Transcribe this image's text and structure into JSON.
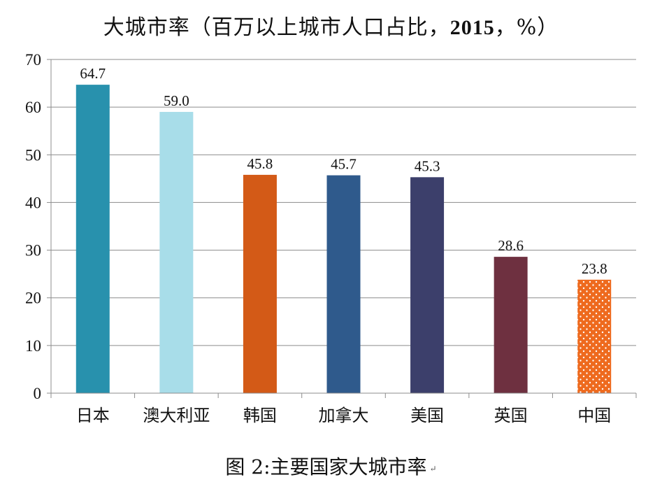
{
  "title_prefix": "大城市率（百万以上城市人口占比，",
  "title_year": "2015",
  "title_suffix": "，%）",
  "caption": "图 2:主要国家大城市率",
  "caption_mark": "↵",
  "chart_data": {
    "type": "bar",
    "title": "大城市率（百万以上城市人口占比，2015，%）",
    "categories": [
      "日本",
      "澳大利亚",
      "韩国",
      "加拿大",
      "美国",
      "英国",
      "中国"
    ],
    "values": [
      64.7,
      59.0,
      45.8,
      45.7,
      45.3,
      28.6,
      23.8
    ],
    "labels": [
      "64.7",
      "59.0",
      "45.8",
      "45.7",
      "45.3",
      "28.6",
      "23.8"
    ],
    "ylim": [
      0,
      70
    ],
    "yticks": [
      "0",
      "10",
      "20",
      "30",
      "40",
      "50",
      "60",
      "70"
    ],
    "colors": [
      "#2891ad",
      "#a8dde9",
      "#d35a17",
      "#2f5a8c",
      "#3c3f6b",
      "#6e3040",
      "#ee6a1e"
    ],
    "patterned": [
      false,
      false,
      false,
      false,
      false,
      false,
      true
    ],
    "grid": true,
    "legend": "none"
  }
}
